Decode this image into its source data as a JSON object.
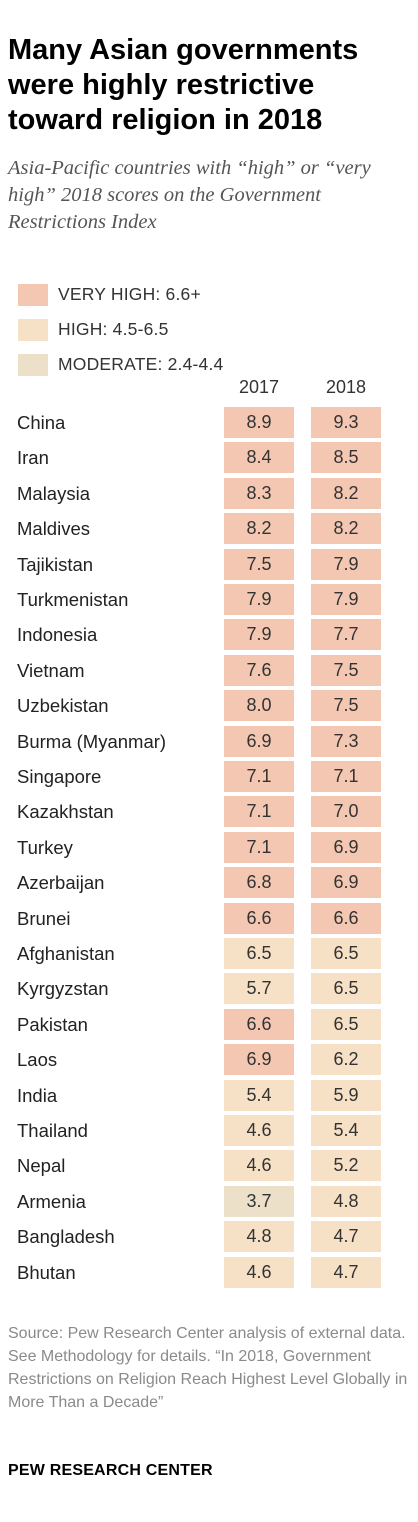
{
  "title": "Many Asian governments were highly restrictive toward religion in 2018",
  "subtitle": "Asia-Pacific countries with “high” or “very high” 2018 scores on the Government Restrictions Index",
  "legend": [
    {
      "label": "VERY HIGH: 6.6+",
      "color": "#f3c7b1"
    },
    {
      "label": "HIGH: 4.5-6.5",
      "color": "#f6e0c6"
    },
    {
      "label": "MODERATE: 2.4-4.4",
      "color": "#ece0c8"
    }
  ],
  "chart_data": {
    "type": "table",
    "title": "Many Asian governments were highly restrictive toward religion in 2018",
    "columns": [
      "2017",
      "2018"
    ],
    "rows": [
      {
        "country": "China",
        "values": [
          8.9,
          9.3
        ]
      },
      {
        "country": "Iran",
        "values": [
          8.4,
          8.5
        ]
      },
      {
        "country": "Malaysia",
        "values": [
          8.3,
          8.2
        ]
      },
      {
        "country": "Maldives",
        "values": [
          8.2,
          8.2
        ]
      },
      {
        "country": "Tajikistan",
        "values": [
          7.5,
          7.9
        ]
      },
      {
        "country": "Turkmenistan",
        "values": [
          7.9,
          7.9
        ]
      },
      {
        "country": "Indonesia",
        "values": [
          7.9,
          7.7
        ]
      },
      {
        "country": "Vietnam",
        "values": [
          7.6,
          7.5
        ]
      },
      {
        "country": "Uzbekistan",
        "values": [
          8.0,
          7.5
        ]
      },
      {
        "country": "Burma (Myanmar)",
        "values": [
          6.9,
          7.3
        ]
      },
      {
        "country": "Singapore",
        "values": [
          7.1,
          7.1
        ]
      },
      {
        "country": "Kazakhstan",
        "values": [
          7.1,
          7.0
        ]
      },
      {
        "country": "Turkey",
        "values": [
          7.1,
          6.9
        ]
      },
      {
        "country": "Azerbaijan",
        "values": [
          6.8,
          6.9
        ]
      },
      {
        "country": "Brunei",
        "values": [
          6.6,
          6.6
        ]
      },
      {
        "country": "Afghanistan",
        "values": [
          6.5,
          6.5
        ]
      },
      {
        "country": "Kyrgyzstan",
        "values": [
          5.7,
          6.5
        ]
      },
      {
        "country": "Pakistan",
        "values": [
          6.6,
          6.5
        ]
      },
      {
        "country": "Laos",
        "values": [
          6.9,
          6.2
        ]
      },
      {
        "country": "India",
        "values": [
          5.4,
          5.9
        ]
      },
      {
        "country": "Thailand",
        "values": [
          4.6,
          5.4
        ]
      },
      {
        "country": "Nepal",
        "values": [
          4.6,
          5.2
        ]
      },
      {
        "country": "Armenia",
        "values": [
          3.7,
          4.8
        ]
      },
      {
        "country": "Bangladesh",
        "values": [
          4.8,
          4.7
        ]
      },
      {
        "country": "Bhutan",
        "values": [
          4.6,
          4.7
        ]
      }
    ]
  },
  "source": "Source: Pew Research Center analysis of external data. See Methodology for details. “In 2018, Government Restrictions on Religion Reach Highest Level Globally in More Than a Decade”",
  "footer": "PEW RESEARCH CENTER"
}
